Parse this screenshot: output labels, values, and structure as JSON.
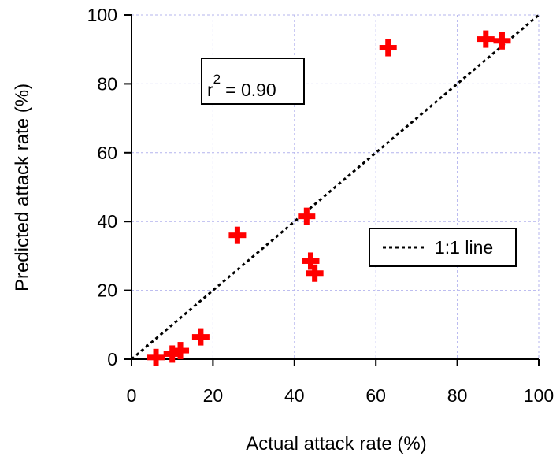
{
  "colors": {
    "marker": "#ff0000",
    "grid": "#b4b4ee",
    "axis": "#000000",
    "line": "#000000"
  },
  "chart_data": {
    "type": "scatter",
    "xlabel": "Actual attack rate (%)",
    "ylabel": "Predicted attack rate (%)",
    "xlim": [
      0,
      100
    ],
    "ylim": [
      0,
      100
    ],
    "xticks": [
      0,
      20,
      40,
      60,
      80,
      100
    ],
    "yticks": [
      0,
      20,
      40,
      60,
      80,
      100
    ],
    "grid": true,
    "series": [
      {
        "marker": "plus",
        "points": [
          {
            "x": 6,
            "y": 0.5
          },
          {
            "x": 10,
            "y": 1.5
          },
          {
            "x": 12,
            "y": 2.5
          },
          {
            "x": 17,
            "y": 6.5
          },
          {
            "x": 26,
            "y": 36
          },
          {
            "x": 43,
            "y": 41.5
          },
          {
            "x": 44,
            "y": 28.5
          },
          {
            "x": 45,
            "y": 25
          },
          {
            "x": 63,
            "y": 90.5
          },
          {
            "x": 87,
            "y": 93
          },
          {
            "x": 91,
            "y": 92.5
          }
        ]
      }
    ],
    "reference_line": {
      "from": [
        0,
        0
      ],
      "to": [
        100,
        100
      ],
      "style": "dashed"
    },
    "stat_box": {
      "base": "r",
      "exponent": "2",
      "value_text": "= 0.90"
    },
    "legend": {
      "position": "right",
      "entries": [
        "1:1 line"
      ]
    }
  }
}
